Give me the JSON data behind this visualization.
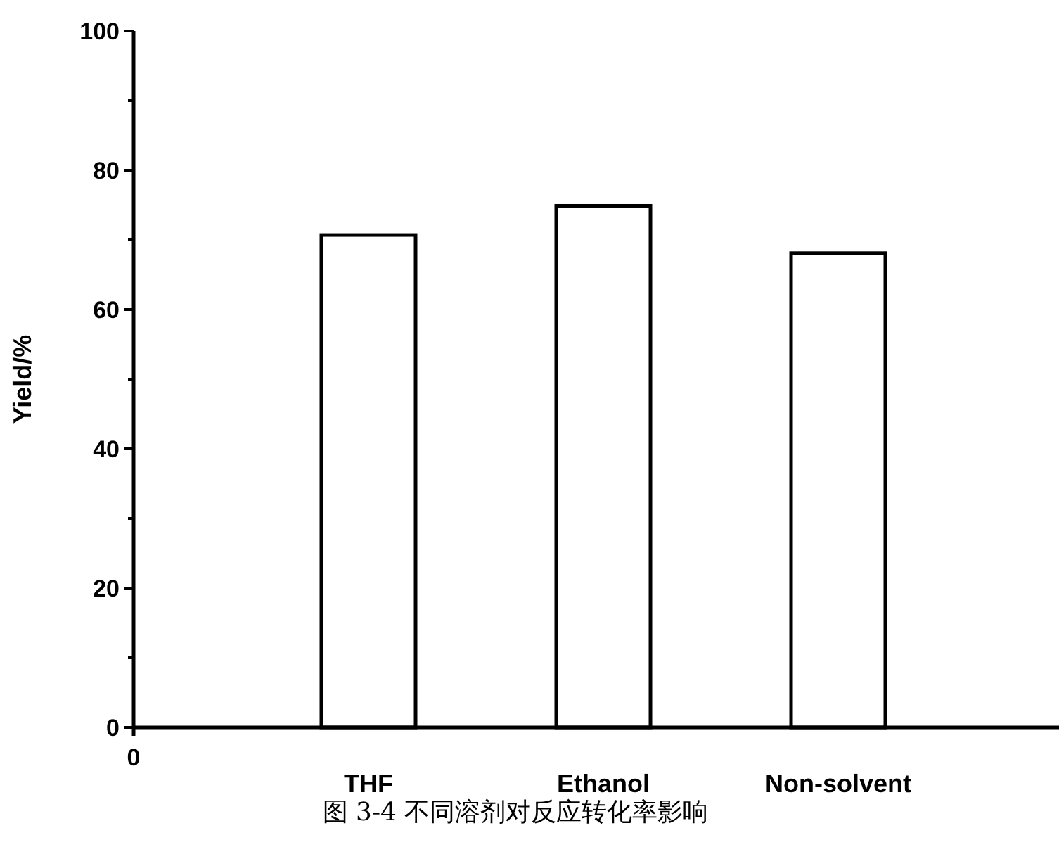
{
  "chart_data": {
    "type": "bar",
    "ylabel": "Yield/%",
    "categories": [
      "THF",
      "Ethanol",
      "Non-solvent"
    ],
    "values": [
      70.7,
      74.9,
      68.1
    ],
    "color": "#ffffff",
    "ylim": [
      0,
      100
    ],
    "yticks": [
      0,
      {
        "value": 10,
        "label": null
      },
      20,
      {
        "value": 30,
        "label": null
      },
      40,
      {
        "value": 50,
        "label": null
      },
      60,
      {
        "value": 70,
        "label": null
      },
      80,
      {
        "value": 90,
        "label": null
      },
      100
    ],
    "grid": false,
    "annotations": [
      "0",
      "图 3-4 不同溶剂对反应转化率影响"
    ]
  }
}
